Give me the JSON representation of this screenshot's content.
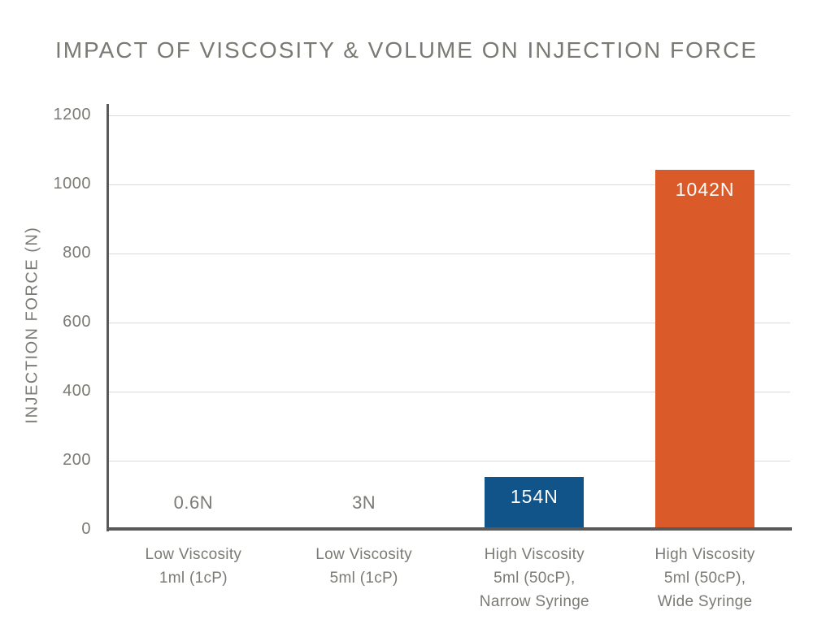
{
  "title": "IMPACT OF VISCOSITY & VOLUME ON INJECTION FORCE",
  "chart_data": {
    "type": "bar",
    "title": "IMPACT OF VISCOSITY & VOLUME ON INJECTION FORCE",
    "xlabel": "",
    "ylabel": "INJECTION FORCE (N)",
    "ylim": [
      0,
      1200
    ],
    "yticks": [
      0,
      200,
      400,
      600,
      800,
      1000,
      1200
    ],
    "grid": true,
    "legend": false,
    "categories": [
      "Low Viscosity\n1ml (1cP)",
      "Low Viscosity\n5ml (1cP)",
      "High Viscosity\n5ml (50cP),\nNarrow Syringe",
      "High Viscosity\n5ml (50cP),\nWide Syringe"
    ],
    "values": [
      0.6,
      3,
      154,
      1042
    ],
    "value_labels": [
      "0.6N",
      "3N",
      "154N",
      "1042N"
    ],
    "label_inside": [
      false,
      false,
      true,
      true
    ],
    "bar_colors": [
      "#115489",
      "#115489",
      "#115489",
      "#da5a29"
    ],
    "colors": {
      "bar_blue": "#115489",
      "bar_orange": "#da5a29",
      "text_gray": "#7b7a74",
      "axis": "#595959",
      "gridline": "#d9d9d9",
      "value_label_inside": "#ffffff"
    }
  }
}
